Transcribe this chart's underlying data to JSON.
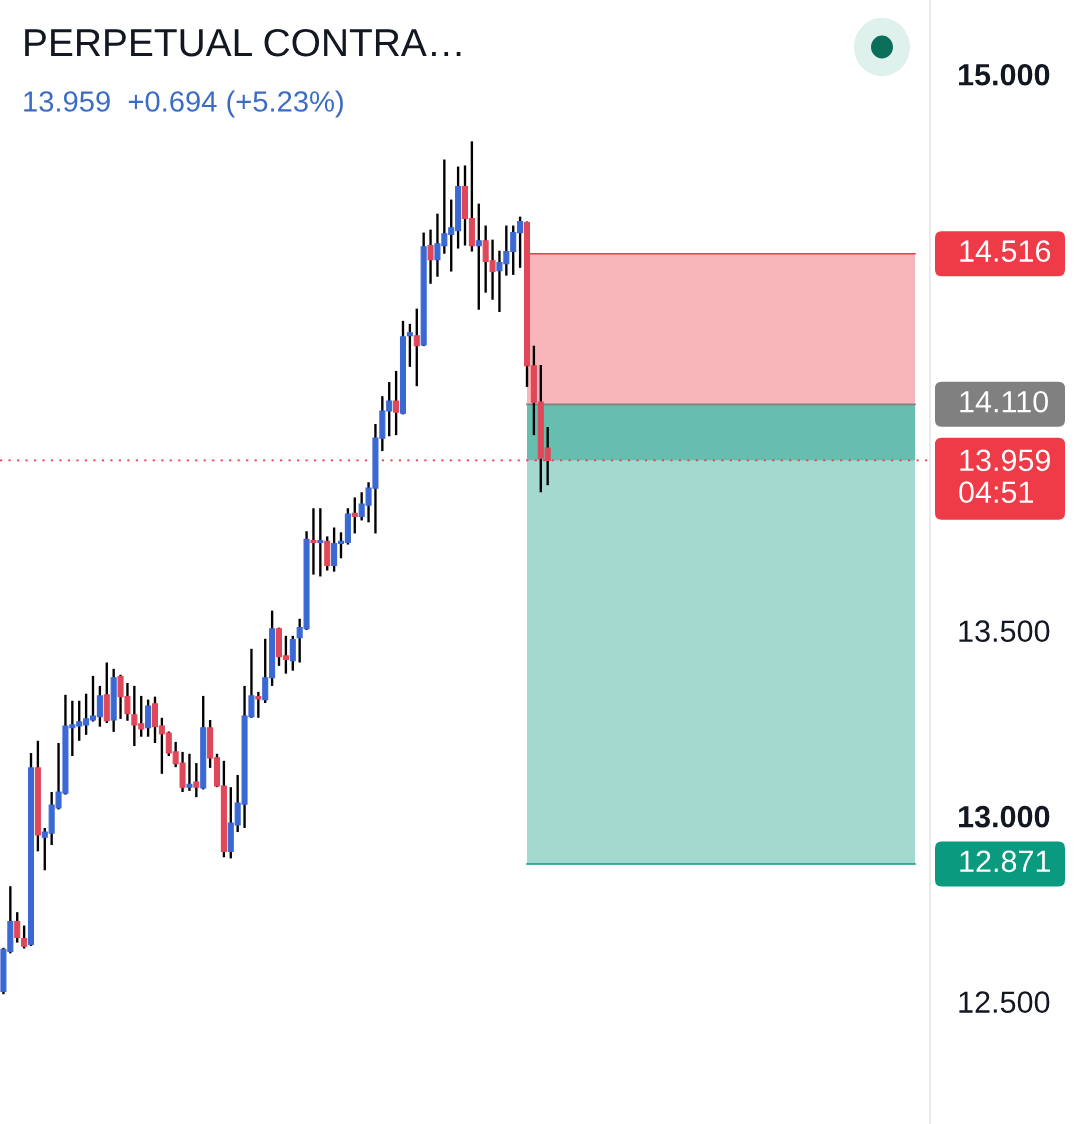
{
  "chart_data": {
    "type": "candlestick",
    "title": "PERPETUAL CONTRA…",
    "subtitle": "13.959  +0.694 (+5.23%)",
    "categories": [
      null,
      null,
      null,
      null,
      null,
      null,
      null,
      null,
      null,
      null,
      null,
      null,
      null,
      null,
      null,
      null,
      null,
      null,
      null,
      null,
      null,
      null,
      null,
      null,
      null,
      null,
      null,
      null,
      null,
      null,
      null,
      null,
      null,
      null,
      null,
      null,
      null,
      null,
      null,
      null,
      null,
      null,
      null,
      null,
      null,
      null,
      null,
      null,
      null,
      null,
      null,
      null,
      null,
      null,
      null,
      null,
      null,
      null,
      null,
      null,
      null,
      null,
      null,
      null,
      null,
      null,
      null,
      null,
      null,
      null,
      null,
      null,
      null,
      null,
      null,
      null,
      null,
      null,
      null,
      null,
      null,
      null,
      null,
      null,
      null,
      null,
      null,
      null,
      null,
      null,
      null,
      null,
      null,
      null,
      null,
      null,
      null,
      null,
      null,
      null,
      null,
      null,
      null,
      null,
      null,
      null,
      null,
      null,
      null,
      null,
      null,
      null,
      null,
      null,
      null,
      null,
      null,
      null,
      null,
      null,
      null,
      null,
      null,
      null,
      null,
      null,
      null,
      null,
      null,
      null,
      null,
      null,
      null,
      null,
      null
    ],
    "ohlc": [
      [
        12.527,
        12.645,
        12.52,
        12.641
      ],
      [
        12.635,
        12.811,
        12.63,
        12.716
      ],
      [
        12.716,
        12.741,
        12.659,
        12.673
      ],
      [
        12.67,
        12.705,
        12.643,
        12.649
      ],
      [
        12.654,
        13.17,
        12.65,
        13.13
      ],
      [
        13.13,
        13.203,
        12.905,
        12.949
      ],
      [
        12.943,
        12.968,
        12.854,
        12.957
      ],
      [
        12.954,
        13.065,
        12.922,
        13.03
      ],
      [
        13.022,
        13.197,
        13.018,
        13.065
      ],
      [
        13.062,
        13.327,
        13.058,
        13.243
      ],
      [
        13.238,
        13.311,
        13.162,
        13.246
      ],
      [
        13.243,
        13.311,
        13.203,
        13.254
      ],
      [
        13.246,
        13.33,
        13.219,
        13.262
      ],
      [
        13.259,
        13.378,
        13.255,
        13.27
      ],
      [
        13.268,
        13.351,
        13.241,
        13.324
      ],
      [
        13.327,
        13.414,
        13.251,
        13.257
      ],
      [
        13.259,
        13.397,
        13.227,
        13.373
      ],
      [
        13.376,
        13.381,
        13.262,
        13.322
      ],
      [
        13.322,
        13.359,
        13.257,
        13.276
      ],
      [
        13.273,
        13.351,
        13.189,
        13.246
      ],
      [
        13.249,
        13.324,
        13.214,
        13.235
      ],
      [
        13.238,
        13.314,
        13.214,
        13.297
      ],
      [
        13.303,
        13.322,
        13.197,
        13.241
      ],
      [
        13.243,
        13.265,
        13.114,
        13.222
      ],
      [
        13.224,
        13.228,
        13.162,
        13.17
      ],
      [
        13.173,
        13.2,
        13.132,
        13.141
      ],
      [
        13.143,
        13.173,
        13.065,
        13.078
      ],
      [
        13.078,
        13.168,
        13.068,
        13.086
      ],
      [
        13.092,
        13.143,
        13.051,
        13.078
      ],
      [
        13.076,
        13.324,
        13.072,
        13.238
      ],
      [
        13.238,
        13.259,
        13.13,
        13.157
      ],
      [
        13.157,
        13.168,
        13.078,
        13.081
      ],
      [
        13.081,
        13.149,
        12.889,
        12.905
      ],
      [
        12.905,
        13.078,
        12.886,
        12.981
      ],
      [
        12.976,
        13.111,
        12.957,
        13.035
      ],
      [
        13.032,
        13.351,
        12.968,
        13.27
      ],
      [
        13.268,
        13.451,
        13.265,
        13.324
      ],
      [
        13.322,
        13.335,
        13.265,
        13.316
      ],
      [
        13.314,
        13.478,
        13.305,
        13.373
      ],
      [
        13.373,
        13.554,
        13.351,
        13.505
      ],
      [
        13.505,
        13.508,
        13.405,
        13.43
      ],
      [
        13.432,
        13.486,
        13.384,
        13.422
      ],
      [
        13.419,
        13.486,
        13.392,
        13.476
      ],
      [
        13.481,
        13.532,
        13.414,
        13.508
      ],
      [
        13.505,
        13.768,
        13.502,
        13.746
      ],
      [
        13.743,
        13.83,
        13.651,
        13.738
      ],
      [
        13.738,
        13.83,
        13.646,
        13.743
      ],
      [
        13.741,
        13.754,
        13.662,
        13.676
      ],
      [
        13.676,
        13.778,
        13.659,
        13.735
      ],
      [
        13.735,
        13.765,
        13.695,
        13.741
      ],
      [
        13.738,
        13.83,
        13.732,
        13.814
      ],
      [
        13.816,
        13.859,
        13.762,
        13.808
      ],
      [
        13.808,
        13.873,
        13.797,
        13.841
      ],
      [
        13.838,
        13.9,
        13.792,
        13.884
      ],
      [
        13.884,
        14.057,
        13.762,
        14.019
      ],
      [
        14.019,
        14.132,
        13.984,
        14.092
      ],
      [
        14.092,
        14.17,
        14.024,
        14.119
      ],
      [
        14.119,
        14.2,
        14.027,
        14.089
      ],
      [
        14.086,
        14.335,
        14.083,
        14.292
      ],
      [
        14.295,
        14.327,
        14.211,
        14.303
      ],
      [
        14.295,
        14.368,
        14.159,
        14.268
      ],
      [
        14.27,
        14.573,
        14.267,
        14.535
      ],
      [
        14.538,
        14.581,
        14.435,
        14.5
      ],
      [
        14.5,
        14.624,
        14.454,
        14.543
      ],
      [
        14.538,
        14.77,
        14.516,
        14.57
      ],
      [
        14.568,
        14.662,
        14.468,
        14.586
      ],
      [
        14.578,
        14.751,
        14.53,
        14.697
      ],
      [
        14.697,
        14.754,
        14.538,
        14.611
      ],
      [
        14.611,
        14.819,
        14.522,
        14.538
      ],
      [
        14.538,
        14.651,
        14.365,
        14.551
      ],
      [
        14.551,
        14.592,
        14.411,
        14.495
      ],
      [
        14.497,
        14.554,
        14.392,
        14.468
      ],
      [
        14.47,
        14.524,
        14.359,
        14.492
      ],
      [
        14.489,
        14.592,
        14.457,
        14.522
      ],
      [
        14.522,
        14.592,
        14.459,
        14.573
      ],
      [
        14.573,
        14.616,
        14.478,
        14.603
      ],
      [
        14.6,
        14.603,
        14.157,
        14.214
      ],
      [
        14.214,
        14.268,
        14.027,
        14.116
      ],
      [
        14.116,
        14.216,
        13.873,
        13.965
      ],
      [
        13.992,
        14.049,
        13.892,
        13.959
      ],
      null,
      null,
      null,
      null,
      null,
      null,
      null,
      null,
      null,
      null,
      null,
      null,
      null,
      null,
      null,
      null,
      null,
      null,
      null,
      null,
      null,
      null,
      null,
      null,
      null,
      null,
      null,
      null,
      null,
      null,
      null,
      null,
      null,
      null,
      null,
      null,
      null,
      null,
      null,
      null,
      null,
      null,
      null,
      null,
      null,
      null,
      null,
      null,
      null,
      null,
      null,
      null,
      null,
      null,
      null
    ],
    "colors": [
      "#3b69d3",
      "#3b69d3",
      "#e0485a",
      "#e0485a",
      "#3b69d3",
      "#e0485a",
      "#3b69d3",
      "#3b69d3",
      "#3b69d3",
      "#3b69d3",
      "#3b69d3",
      "#3b69d3",
      "#3b69d3",
      "#3b69d3",
      "#3b69d3",
      "#e0485a",
      "#3b69d3",
      "#e0485a",
      "#e0485a",
      "#e0485a",
      "#e0485a",
      "#3b69d3",
      "#e0485a",
      "#e0485a",
      "#e0485a",
      "#e0485a",
      "#e0485a",
      "#3b69d3",
      "#e0485a",
      "#3b69d3",
      "#e0485a",
      "#e0485a",
      "#e0485a",
      "#3b69d3",
      "#3b69d3",
      "#3b69d3",
      "#3b69d3",
      "#e0485a",
      "#3b69d3",
      "#3b69d3",
      "#e0485a",
      "#e0485a",
      "#3b69d3",
      "#3b69d3",
      "#3b69d3",
      "#e0485a",
      "#3b69d3",
      "#e0485a",
      "#3b69d3",
      "#3b69d3",
      "#3b69d3",
      "#e0485a",
      "#3b69d3",
      "#3b69d3",
      "#3b69d3",
      "#3b69d3",
      "#3b69d3",
      "#e0485a",
      "#3b69d3",
      "#3b69d3",
      "#e0485a",
      "#3b69d3",
      "#e0485a",
      "#3b69d3",
      "#3b69d3",
      "#3b69d3",
      "#3b69d3",
      "#e0485a",
      "#e0485a",
      "#3b69d3",
      "#e0485a",
      "#e0485a",
      "#3b69d3",
      "#3b69d3",
      "#3b69d3",
      "#3b69d3",
      "#e0485a",
      "#e0485a",
      "#e0485a",
      "#e0485a",
      null,
      null,
      null,
      null,
      null,
      null,
      null,
      null,
      null,
      null,
      null,
      null,
      null,
      null,
      null,
      null,
      null,
      null,
      null,
      null,
      null,
      null,
      null,
      null,
      null,
      null,
      null,
      null,
      null,
      null,
      null,
      null,
      null,
      null,
      null,
      null,
      null,
      null,
      null,
      null,
      null,
      null,
      null,
      null,
      null,
      null,
      null,
      null,
      null,
      null,
      null,
      null,
      null,
      null,
      null
    ],
    "ylim": [
      12.17,
      15.2
    ],
    "yticks": [
      {
        "value": 12.5,
        "label": "12.500"
      },
      {
        "value": 13,
        "label": "13.000"
      },
      {
        "value": 13.5,
        "label": "13.500"
      },
      {
        "value": 15,
        "label": "15.000"
      }
    ],
    "bands": [
      {
        "axis": "y",
        "from": 14.11,
        "to": 14.516,
        "color": "#f8b6ba"
      },
      {
        "axis": "y",
        "from": 12.871,
        "to": 14.11,
        "color": "#a4d9cf"
      },
      {
        "axis": "y",
        "from": 13.959,
        "to": 14.11,
        "color": "#66bfae"
      }
    ],
    "ref_lines": [
      {
        "axis": "y",
        "value": 14.516,
        "label": "14.516",
        "color": "#ef3a48"
      },
      {
        "axis": "y",
        "value": 14.11,
        "label": "14.110",
        "color": "#808080"
      },
      {
        "axis": "y",
        "value": 13.959,
        "label": "13.959\n04:51",
        "color": "#ef3a48",
        "line_style": "dotted"
      },
      {
        "axis": "y",
        "value": 12.871,
        "label": "12.871",
        "color": "#0a9a7f"
      }
    ]
  }
}
